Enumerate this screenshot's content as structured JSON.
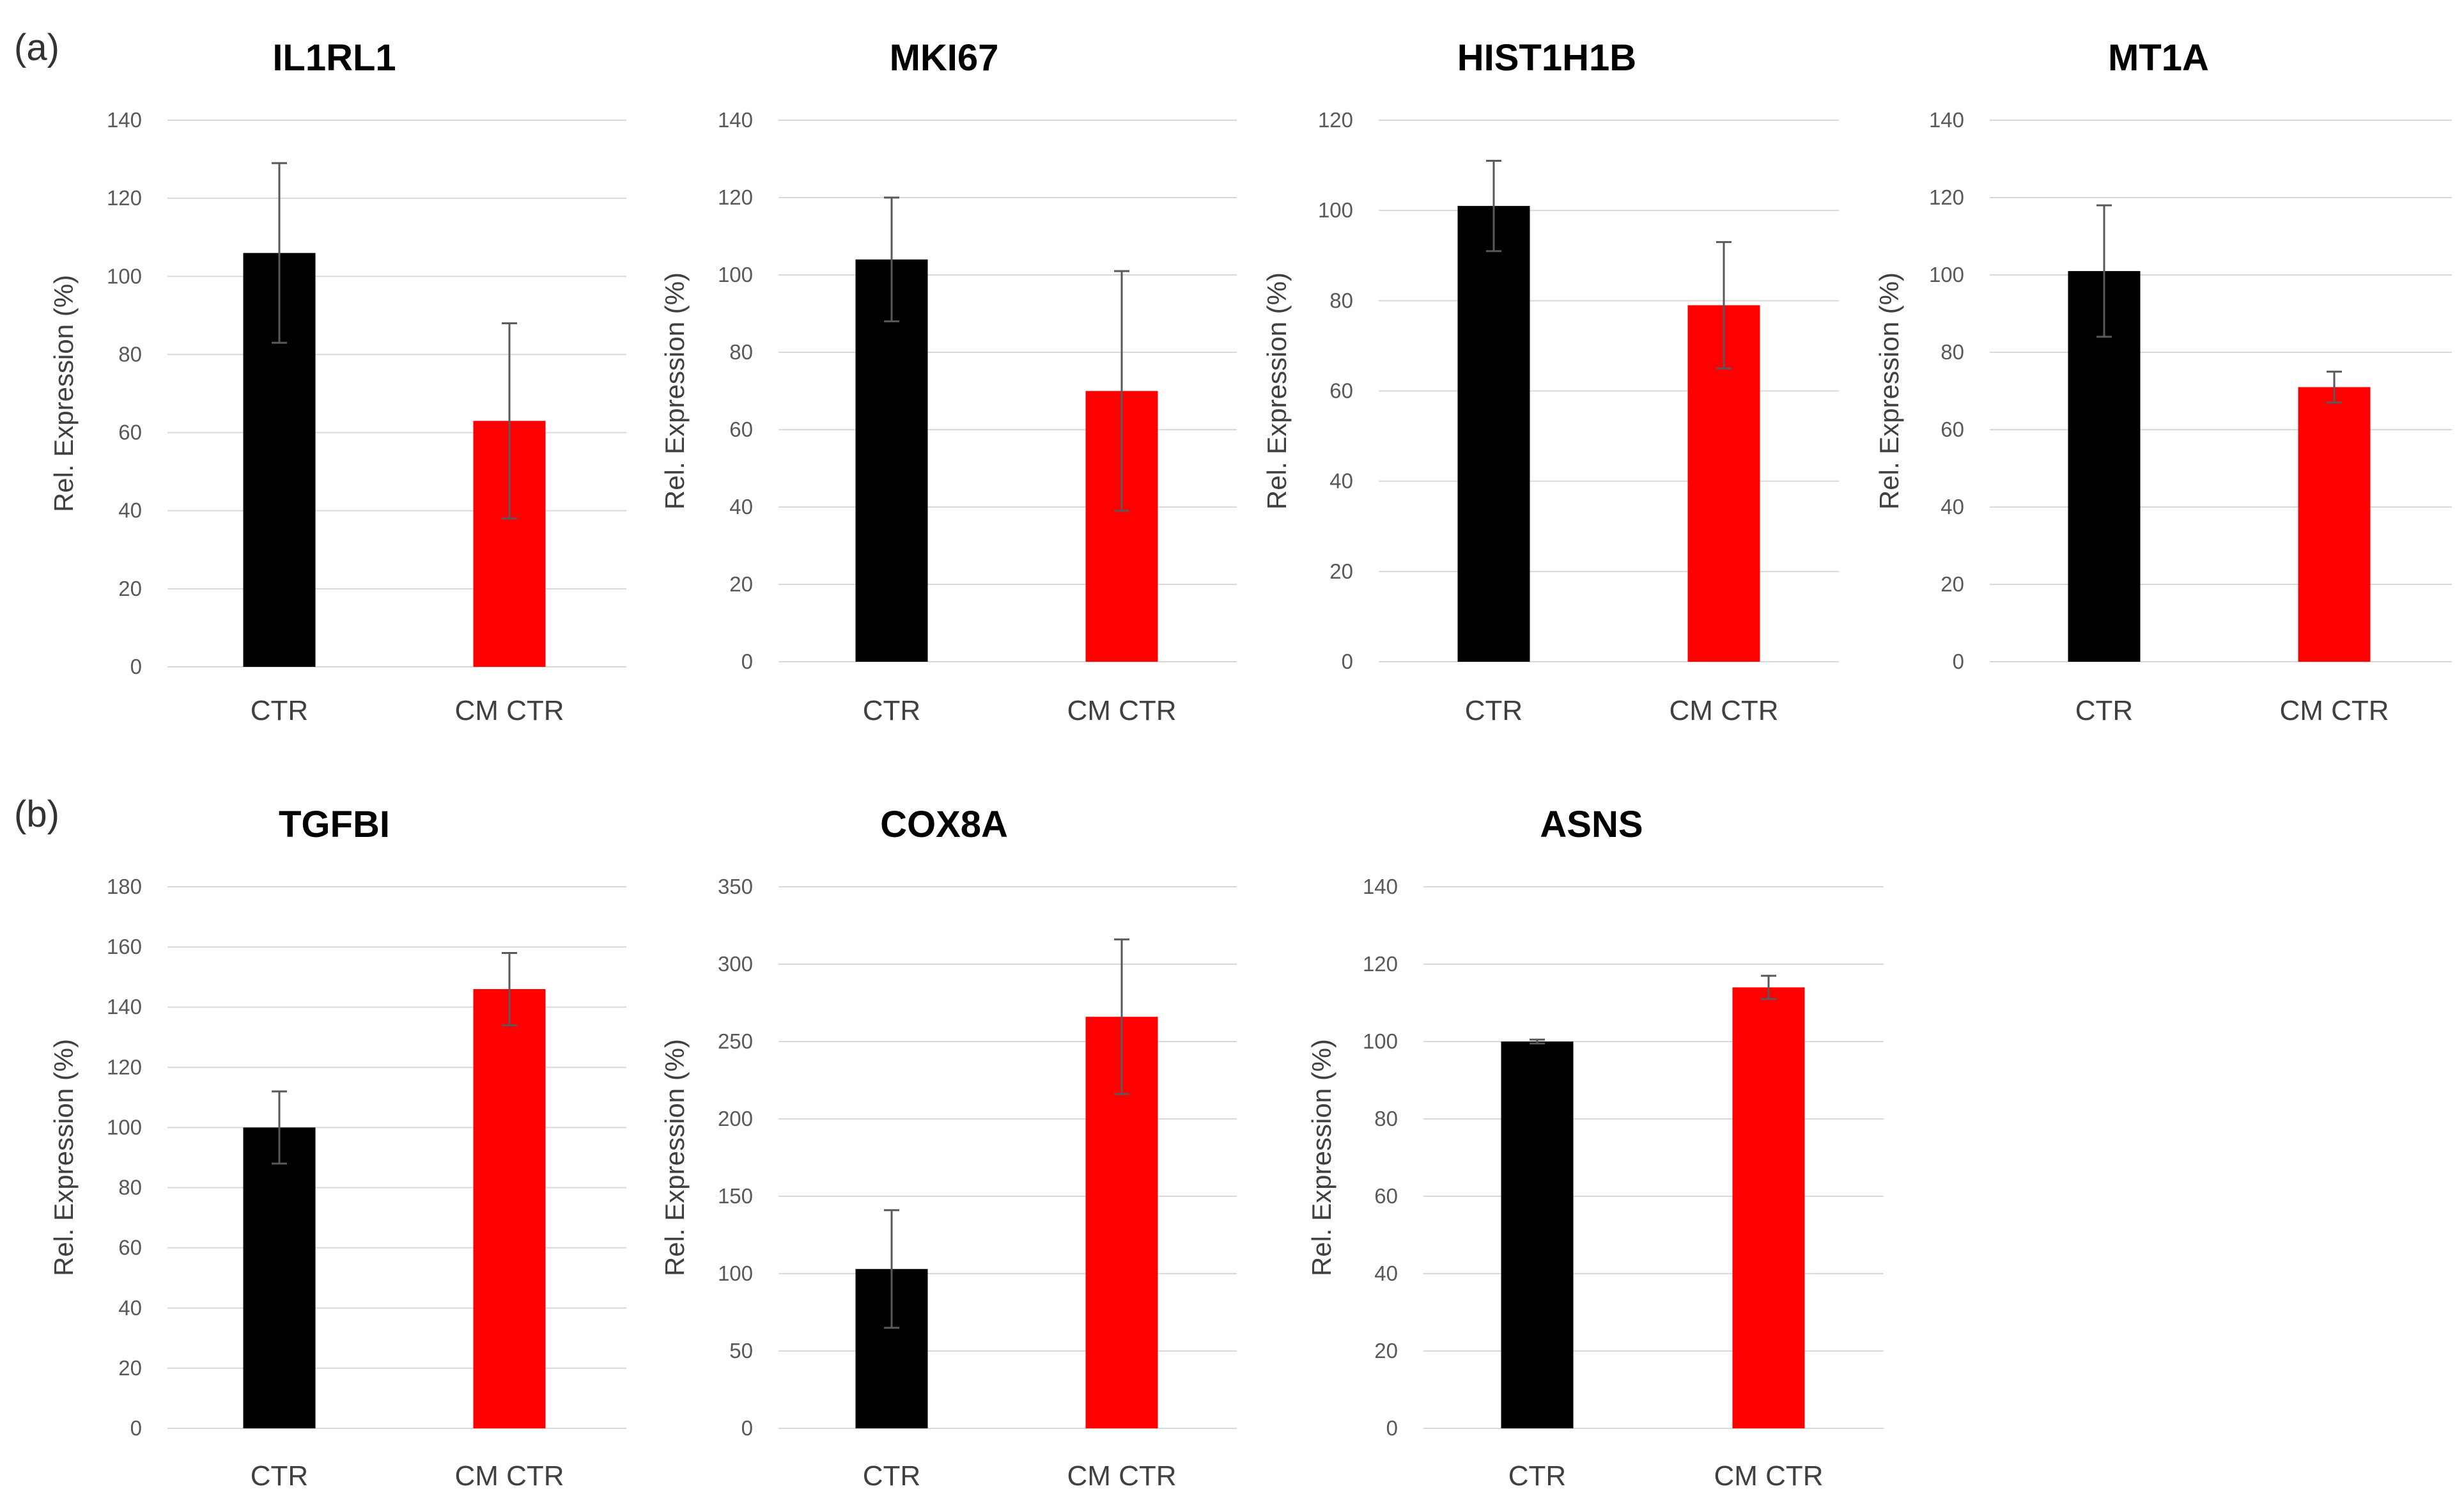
{
  "panel_labels": [
    "(a)",
    "(b)"
  ],
  "chart_data": [
    {
      "type": "bar",
      "panel": "(a)",
      "title": "IL1RL1",
      "ylabel": "Rel. Expression (%)",
      "xlabel": "",
      "categories": [
        "CTR",
        "CM CTR"
      ],
      "values": [
        106,
        63
      ],
      "error": [
        23,
        25
      ],
      "colors": [
        "#000000",
        "#ff0000"
      ],
      "ylim": [
        0,
        140
      ],
      "yticks": [
        0,
        20,
        40,
        60,
        80,
        100,
        120,
        140
      ],
      "grid": true,
      "legend": "none"
    },
    {
      "type": "bar",
      "panel": "(a)",
      "title": "MKI67",
      "ylabel": "Rel. Expression (%)",
      "xlabel": "",
      "categories": [
        "CTR",
        "CM CTR"
      ],
      "values": [
        104,
        70
      ],
      "error": [
        16,
        31
      ],
      "colors": [
        "#000000",
        "#ff0000"
      ],
      "ylim": [
        0,
        140
      ],
      "yticks": [
        0,
        20,
        40,
        60,
        80,
        100,
        120,
        140
      ],
      "grid": true,
      "legend": "none"
    },
    {
      "type": "bar",
      "panel": "(a)",
      "title": "HIST1H1B",
      "ylabel": "Rel. Expression (%)",
      "xlabel": "",
      "categories": [
        "CTR",
        "CM CTR"
      ],
      "values": [
        101,
        79
      ],
      "error": [
        10,
        14
      ],
      "colors": [
        "#000000",
        "#ff0000"
      ],
      "ylim": [
        0,
        120
      ],
      "yticks": [
        0,
        20,
        40,
        60,
        80,
        100,
        120
      ],
      "grid": true,
      "legend": "none"
    },
    {
      "type": "bar",
      "panel": "(a)",
      "title": "MT1A",
      "ylabel": "Rel. Expression (%)",
      "xlabel": "",
      "categories": [
        "CTR",
        "CM CTR"
      ],
      "values": [
        101,
        71
      ],
      "error": [
        17,
        4
      ],
      "colors": [
        "#000000",
        "#ff0000"
      ],
      "ylim": [
        0,
        140
      ],
      "yticks": [
        0,
        20,
        40,
        60,
        80,
        100,
        120,
        140
      ],
      "grid": true,
      "legend": "none"
    },
    {
      "type": "bar",
      "panel": "(b)",
      "title": "TGFBI",
      "ylabel": "Rel. Expression (%)",
      "xlabel": "",
      "categories": [
        "CTR",
        "CM CTR"
      ],
      "values": [
        100,
        146
      ],
      "error": [
        12,
        12
      ],
      "colors": [
        "#000000",
        "#ff0000"
      ],
      "ylim": [
        0,
        180
      ],
      "yticks": [
        0,
        20,
        40,
        60,
        80,
        100,
        120,
        140,
        160,
        180
      ],
      "grid": true,
      "legend": "none"
    },
    {
      "type": "bar",
      "panel": "(b)",
      "title": "COX8A",
      "ylabel": "Rel. Expression (%)",
      "xlabel": "",
      "categories": [
        "CTR",
        "CM CTR"
      ],
      "values": [
        103,
        266
      ],
      "error": [
        38,
        50
      ],
      "colors": [
        "#000000",
        "#ff0000"
      ],
      "ylim": [
        0,
        350
      ],
      "yticks": [
        0,
        50,
        100,
        150,
        200,
        250,
        300,
        350
      ],
      "grid": true,
      "legend": "none"
    },
    {
      "type": "bar",
      "panel": "(b)",
      "title": "ASNS",
      "ylabel": "Rel. Expression (%)",
      "xlabel": "",
      "categories": [
        "CTR",
        "CM CTR"
      ],
      "values": [
        100,
        114
      ],
      "error": [
        0.5,
        3
      ],
      "colors": [
        "#000000",
        "#ff0000"
      ],
      "ylim": [
        0,
        140
      ],
      "yticks": [
        0,
        20,
        40,
        60,
        80,
        100,
        120,
        140
      ],
      "grid": true,
      "legend": "none"
    }
  ]
}
